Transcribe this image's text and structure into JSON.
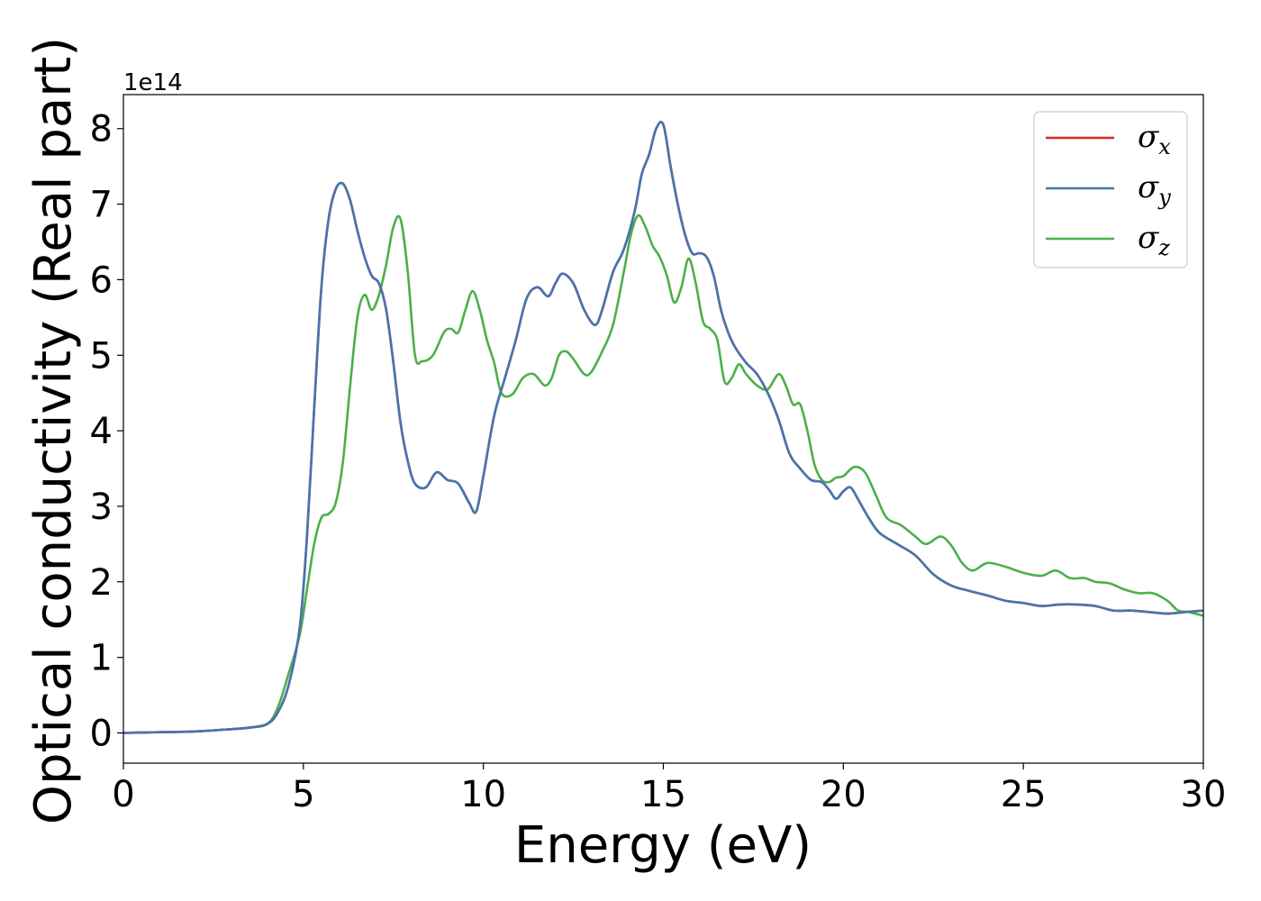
{
  "chart_data": {
    "type": "line",
    "xlabel": "Energy (eV)",
    "ylabel": "Optical conductivity (Real part)",
    "y_offset_label": "1e14",
    "xlim": [
      0,
      30
    ],
    "ylim": [
      -0.4,
      8.45
    ],
    "x_ticks": [
      0,
      5,
      10,
      15,
      20,
      25,
      30
    ],
    "y_ticks": [
      0,
      1,
      2,
      3,
      4,
      5,
      6,
      7,
      8
    ],
    "grid": false,
    "legend_position": "top-right",
    "series": [
      {
        "name": "σx",
        "symbol": "σ",
        "subscript": "x",
        "color": "#d62728",
        "x": [
          0,
          1,
          2,
          3,
          3.5,
          4,
          4.3,
          4.6,
          4.9,
          5.1,
          5.3,
          5.5,
          5.7,
          5.9,
          6.1,
          6.3,
          6.5,
          6.7,
          6.9,
          7.1,
          7.3,
          7.5,
          7.7,
          7.9,
          8.1,
          8.4,
          8.7,
          9.0,
          9.3,
          9.6,
          9.8,
          10.0,
          10.3,
          10.6,
          10.9,
          11.2,
          11.5,
          11.8,
          12.0,
          12.2,
          12.5,
          12.8,
          13.1,
          13.3,
          13.6,
          13.9,
          14.2,
          14.4,
          14.6,
          14.8,
          15.0,
          15.2,
          15.4,
          15.6,
          15.8,
          16.0,
          16.2,
          16.4,
          16.6,
          16.8,
          17.0,
          17.3,
          17.6,
          17.9,
          18.2,
          18.5,
          18.8,
          19.1,
          19.4,
          19.6,
          19.8,
          20.0,
          20.2,
          20.4,
          20.7,
          21.0,
          21.5,
          22.0,
          22.5,
          23.0,
          23.5,
          24.0,
          24.5,
          25.0,
          25.5,
          26.0,
          26.5,
          27.0,
          27.5,
          28.0,
          28.5,
          29.0,
          29.5,
          30.0
        ],
        "values": [
          0.0,
          0.01,
          0.02,
          0.05,
          0.07,
          0.12,
          0.28,
          0.65,
          1.4,
          2.6,
          4.3,
          5.9,
          6.8,
          7.2,
          7.27,
          7.05,
          6.65,
          6.3,
          6.05,
          5.95,
          5.6,
          4.9,
          4.1,
          3.6,
          3.3,
          3.25,
          3.45,
          3.35,
          3.3,
          3.05,
          2.93,
          3.4,
          4.2,
          4.7,
          5.2,
          5.75,
          5.9,
          5.78,
          5.95,
          6.08,
          5.95,
          5.6,
          5.4,
          5.6,
          6.1,
          6.4,
          6.9,
          7.4,
          7.65,
          8.0,
          8.05,
          7.5,
          7.0,
          6.6,
          6.35,
          6.35,
          6.3,
          6.05,
          5.6,
          5.3,
          5.1,
          4.9,
          4.75,
          4.5,
          4.15,
          3.7,
          3.5,
          3.35,
          3.32,
          3.22,
          3.1,
          3.2,
          3.25,
          3.1,
          2.85,
          2.65,
          2.5,
          2.35,
          2.1,
          1.95,
          1.88,
          1.82,
          1.75,
          1.72,
          1.68,
          1.7,
          1.7,
          1.68,
          1.62,
          1.62,
          1.6,
          1.58,
          1.6,
          1.62
        ]
      },
      {
        "name": "σy",
        "symbol": "σ",
        "subscript": "y",
        "color": "#4575b0",
        "x": [
          0,
          1,
          2,
          3,
          3.5,
          4,
          4.3,
          4.6,
          4.9,
          5.1,
          5.3,
          5.5,
          5.7,
          5.9,
          6.1,
          6.3,
          6.5,
          6.7,
          6.9,
          7.1,
          7.3,
          7.5,
          7.7,
          7.9,
          8.1,
          8.4,
          8.7,
          9.0,
          9.3,
          9.6,
          9.8,
          10.0,
          10.3,
          10.6,
          10.9,
          11.2,
          11.5,
          11.8,
          12.0,
          12.2,
          12.5,
          12.8,
          13.1,
          13.3,
          13.6,
          13.9,
          14.2,
          14.4,
          14.6,
          14.8,
          15.0,
          15.2,
          15.4,
          15.6,
          15.8,
          16.0,
          16.2,
          16.4,
          16.6,
          16.8,
          17.0,
          17.3,
          17.6,
          17.9,
          18.2,
          18.5,
          18.8,
          19.1,
          19.4,
          19.6,
          19.8,
          20.0,
          20.2,
          20.4,
          20.7,
          21.0,
          21.5,
          22.0,
          22.5,
          23.0,
          23.5,
          24.0,
          24.5,
          25.0,
          25.5,
          26.0,
          26.5,
          27.0,
          27.5,
          28.0,
          28.5,
          29.0,
          29.5,
          30.0
        ],
        "values": [
          0.0,
          0.01,
          0.02,
          0.05,
          0.07,
          0.12,
          0.28,
          0.65,
          1.4,
          2.6,
          4.3,
          5.9,
          6.8,
          7.2,
          7.27,
          7.05,
          6.65,
          6.3,
          6.05,
          5.95,
          5.6,
          4.9,
          4.1,
          3.6,
          3.3,
          3.25,
          3.45,
          3.35,
          3.3,
          3.05,
          2.93,
          3.4,
          4.2,
          4.7,
          5.2,
          5.75,
          5.9,
          5.78,
          5.95,
          6.08,
          5.95,
          5.6,
          5.4,
          5.6,
          6.1,
          6.4,
          6.9,
          7.4,
          7.65,
          8.0,
          8.05,
          7.5,
          7.0,
          6.6,
          6.35,
          6.35,
          6.3,
          6.05,
          5.6,
          5.3,
          5.1,
          4.9,
          4.75,
          4.5,
          4.15,
          3.7,
          3.5,
          3.35,
          3.32,
          3.22,
          3.1,
          3.2,
          3.25,
          3.1,
          2.85,
          2.65,
          2.5,
          2.35,
          2.1,
          1.95,
          1.88,
          1.82,
          1.75,
          1.72,
          1.68,
          1.7,
          1.7,
          1.68,
          1.62,
          1.62,
          1.6,
          1.58,
          1.6,
          1.62
        ]
      },
      {
        "name": "σz",
        "symbol": "σ",
        "subscript": "z",
        "color": "#4daf4a",
        "x": [
          0,
          1,
          2,
          3,
          3.5,
          4,
          4.3,
          4.6,
          4.9,
          5.1,
          5.3,
          5.5,
          5.7,
          5.9,
          6.1,
          6.3,
          6.5,
          6.7,
          6.9,
          7.1,
          7.3,
          7.5,
          7.7,
          7.9,
          8.1,
          8.3,
          8.6,
          8.9,
          9.1,
          9.3,
          9.5,
          9.7,
          9.9,
          10.1,
          10.3,
          10.5,
          10.8,
          11.1,
          11.4,
          11.7,
          11.9,
          12.1,
          12.3,
          12.5,
          12.8,
          13.0,
          13.3,
          13.6,
          13.9,
          14.1,
          14.3,
          14.5,
          14.7,
          14.9,
          15.1,
          15.3,
          15.5,
          15.7,
          15.9,
          16.1,
          16.3,
          16.5,
          16.7,
          16.9,
          17.1,
          17.3,
          17.6,
          17.9,
          18.2,
          18.4,
          18.6,
          18.8,
          19.0,
          19.2,
          19.4,
          19.6,
          19.8,
          20.0,
          20.3,
          20.6,
          20.9,
          21.2,
          21.6,
          22.0,
          22.3,
          22.7,
          23.0,
          23.3,
          23.6,
          24.0,
          24.5,
          25.0,
          25.5,
          25.9,
          26.3,
          26.7,
          27.0,
          27.4,
          27.8,
          28.2,
          28.6,
          29.0,
          29.3,
          29.6,
          30.0
        ],
        "values": [
          0.0,
          0.01,
          0.02,
          0.05,
          0.07,
          0.12,
          0.35,
          0.8,
          1.3,
          1.9,
          2.5,
          2.85,
          2.9,
          3.05,
          3.6,
          4.6,
          5.5,
          5.8,
          5.6,
          5.8,
          6.2,
          6.7,
          6.8,
          6.1,
          5.0,
          4.92,
          5.0,
          5.3,
          5.35,
          5.3,
          5.6,
          5.85,
          5.6,
          5.2,
          4.9,
          4.5,
          4.48,
          4.7,
          4.75,
          4.6,
          4.7,
          5.0,
          5.05,
          4.95,
          4.75,
          4.78,
          5.05,
          5.4,
          6.1,
          6.6,
          6.85,
          6.7,
          6.45,
          6.3,
          6.05,
          5.7,
          5.9,
          6.28,
          5.95,
          5.45,
          5.35,
          5.2,
          4.65,
          4.7,
          4.88,
          4.75,
          4.6,
          4.55,
          4.75,
          4.6,
          4.35,
          4.35,
          4.0,
          3.55,
          3.35,
          3.32,
          3.38,
          3.4,
          3.52,
          3.45,
          3.15,
          2.85,
          2.75,
          2.6,
          2.5,
          2.6,
          2.48,
          2.25,
          2.15,
          2.25,
          2.2,
          2.12,
          2.08,
          2.15,
          2.05,
          2.05,
          2.0,
          1.98,
          1.9,
          1.85,
          1.85,
          1.75,
          1.62,
          1.6,
          1.55
        ]
      }
    ]
  }
}
